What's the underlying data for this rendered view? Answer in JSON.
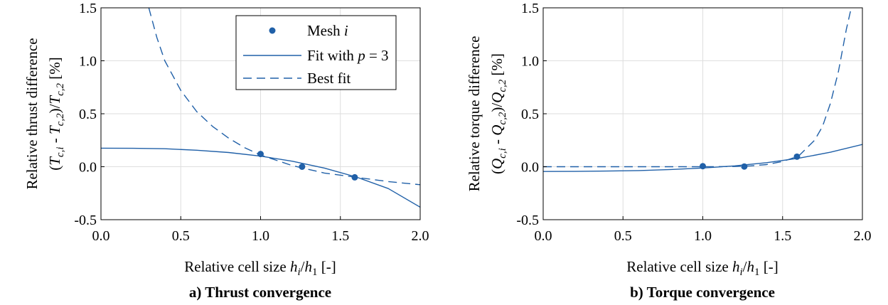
{
  "chart_data": [
    {
      "type": "line",
      "caption": "a) Thrust convergence",
      "xlabel": {
        "main": "Relative cell size ",
        "h": "h",
        "i": "i",
        "slash": "/",
        "h1": "h",
        "one": "1",
        "unit": " [-]"
      },
      "ylabel_line1": "Relative thrust difference",
      "ylabel_line2": {
        "p1": "(",
        "v1": "T",
        "s1": "c,i",
        "mid": " - ",
        "v2": "T",
        "s2": "c,2",
        "p2": ")/",
        "v3": "T",
        "s3": "c,2",
        "unit": " [%]"
      },
      "xlim": [
        0.0,
        2.0
      ],
      "ylim": [
        -0.5,
        1.5
      ],
      "xticks": [
        "0.0",
        "0.5",
        "1.0",
        "1.5",
        "2.0"
      ],
      "yticks": [
        "-0.5",
        "0.0",
        "0.5",
        "1.0",
        "1.5"
      ],
      "grid": true,
      "legend_position": "top-right",
      "series": [
        {
          "name": "Mesh i",
          "kind": "markers",
          "x": [
            1.0,
            1.26,
            1.59
          ],
          "y": [
            0.12,
            0.0,
            -0.1
          ]
        },
        {
          "name": "Fit with p = 3",
          "kind": "solid",
          "x": [
            0.0,
            0.2,
            0.4,
            0.6,
            0.8,
            1.0,
            1.2,
            1.4,
            1.6,
            1.8,
            2.0
          ],
          "y": [
            0.175,
            0.174,
            0.17,
            0.156,
            0.134,
            0.1,
            0.052,
            -0.013,
            -0.097,
            -0.206,
            -0.382
          ]
        },
        {
          "name": "Best fit",
          "kind": "dashed",
          "x": [
            0.3,
            0.35,
            0.4,
            0.5,
            0.6,
            0.7,
            0.8,
            0.9,
            1.0,
            1.2,
            1.4,
            1.6,
            1.8,
            2.0
          ],
          "y": [
            1.5,
            1.22,
            1.0,
            0.72,
            0.52,
            0.38,
            0.27,
            0.18,
            0.11,
            0.01,
            -0.06,
            -0.1,
            -0.14,
            -0.17
          ]
        }
      ],
      "legend": {
        "mesh_label": "Mesh ",
        "mesh_var": "i",
        "fit_label": "Fit with ",
        "fit_var": "p",
        "fit_value": " = 3",
        "best_label": "Best fit"
      }
    },
    {
      "type": "line",
      "caption": "b) Torque convergence",
      "xlabel": {
        "main": "Relative cell size ",
        "h": "h",
        "i": "i",
        "slash": "/",
        "h1": "h",
        "one": "1",
        "unit": " [-]"
      },
      "ylabel_line1": "Relative torque difference",
      "ylabel_line2": {
        "p1": "(",
        "v1": "Q",
        "s1": "c,i",
        "mid": " - ",
        "v2": "Q",
        "s2": "c,2",
        "p2": ")/",
        "v3": "Q",
        "s3": "c,2",
        "unit": " [%]"
      },
      "xlim": [
        0.0,
        2.0
      ],
      "ylim": [
        -0.5,
        1.5
      ],
      "xticks": [
        "0.0",
        "0.5",
        "1.0",
        "1.5",
        "2.0"
      ],
      "yticks": [
        "-0.5",
        "0.0",
        "0.5",
        "1.0",
        "1.5"
      ],
      "grid": true,
      "series": [
        {
          "name": "Mesh i",
          "kind": "markers",
          "x": [
            1.0,
            1.26,
            1.59
          ],
          "y": [
            0.005,
            0.002,
            0.095
          ]
        },
        {
          "name": "Fit with p = 3",
          "kind": "solid",
          "x": [
            0.0,
            0.2,
            0.4,
            0.6,
            0.8,
            1.0,
            1.2,
            1.4,
            1.6,
            1.8,
            2.0
          ],
          "y": [
            -0.045,
            -0.044,
            -0.041,
            -0.036,
            -0.026,
            -0.012,
            0.008,
            0.038,
            0.08,
            0.137,
            0.21
          ]
        },
        {
          "name": "Best fit",
          "kind": "dashed",
          "x": [
            0.0,
            0.5,
            1.0,
            1.2,
            1.3,
            1.4,
            1.5,
            1.6,
            1.7,
            1.75,
            1.8,
            1.85,
            1.9,
            1.93
          ],
          "y": [
            0.0,
            0.0,
            0.0,
            0.002,
            0.008,
            0.02,
            0.05,
            0.1,
            0.25,
            0.38,
            0.6,
            0.9,
            1.3,
            1.5
          ]
        }
      ]
    }
  ]
}
